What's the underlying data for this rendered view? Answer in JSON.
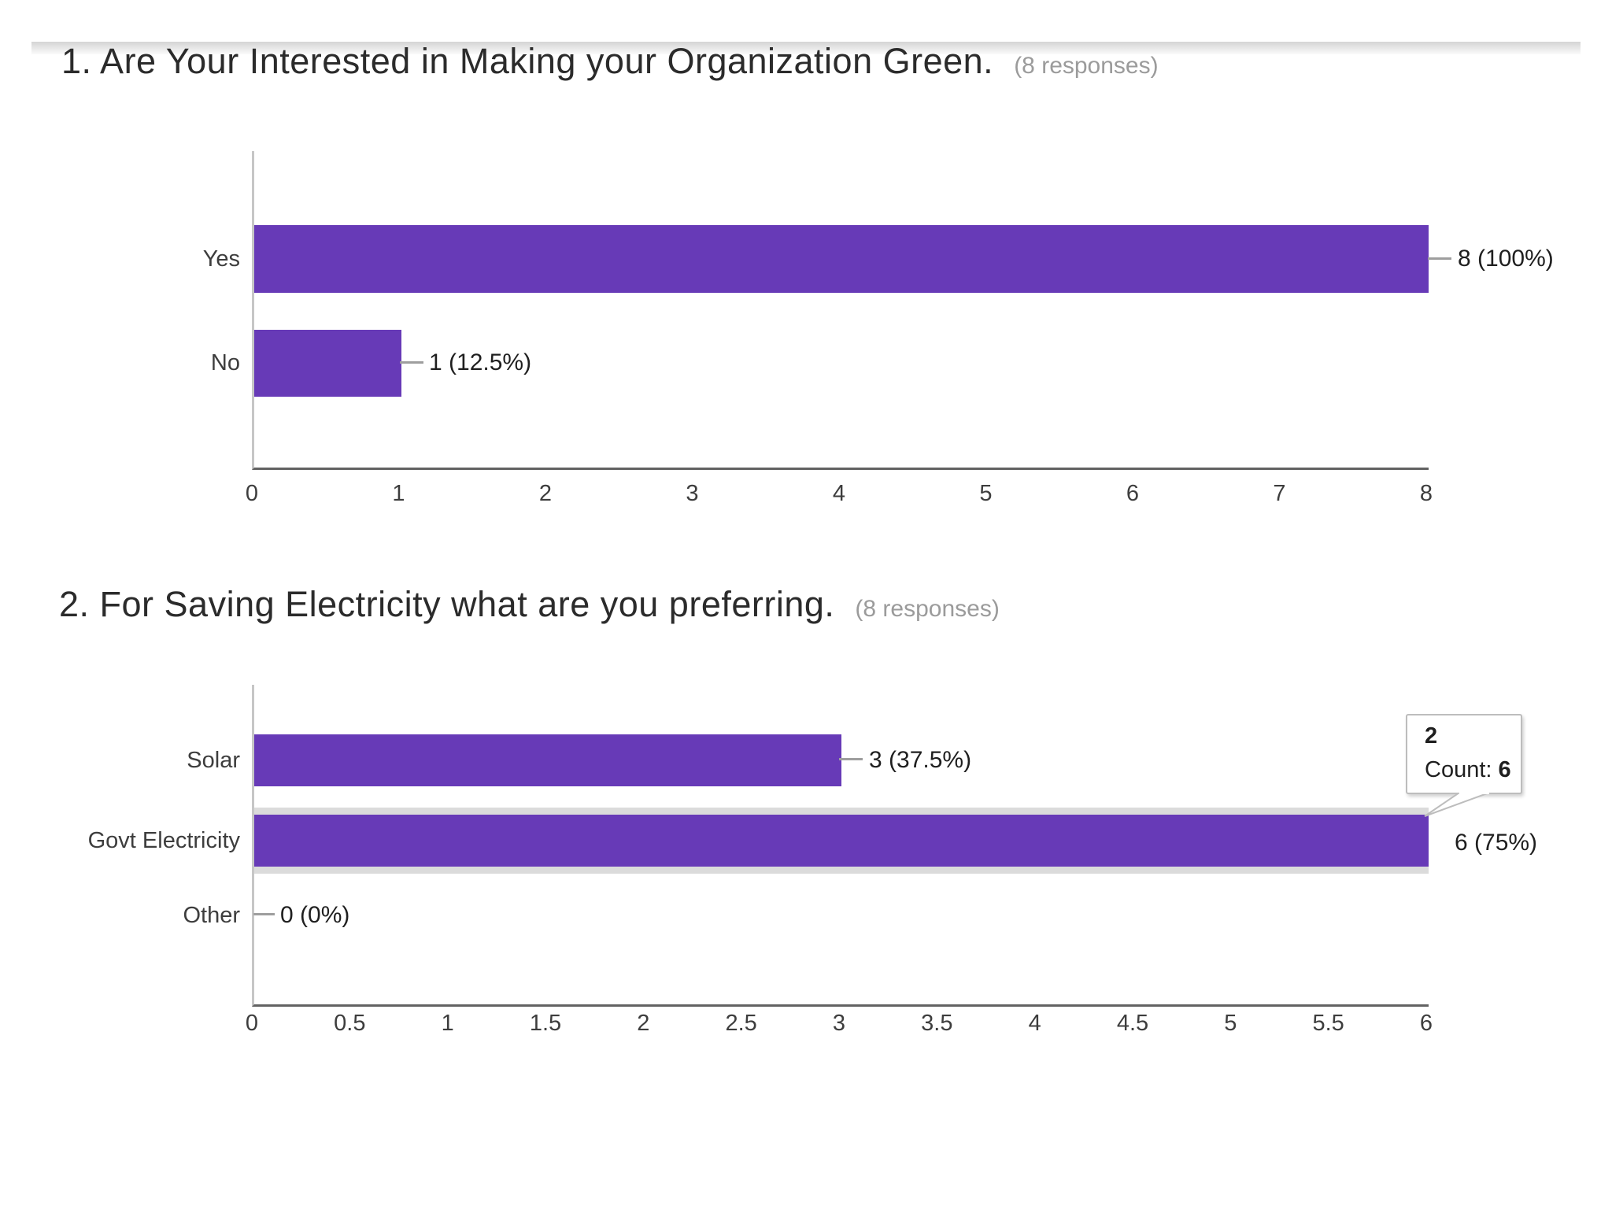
{
  "chart_data": [
    {
      "type": "bar",
      "orientation": "horizontal",
      "title": "1. Are Your Interested in Making your Organization Green.",
      "responses_label": "(8 responses)",
      "categories": [
        "Yes",
        "No"
      ],
      "values": [
        8,
        1
      ],
      "value_labels": [
        "8 (100%)",
        "1 (12.5%)"
      ],
      "xlim": [
        0,
        8
      ],
      "x_ticks": [
        "0",
        "1",
        "2",
        "3",
        "4",
        "5",
        "6",
        "7",
        "8"
      ],
      "bar_color": "#673ab7",
      "legend": "none",
      "grid": "off"
    },
    {
      "type": "bar",
      "orientation": "horizontal",
      "title": "2. For Saving Electricity what are you preferring.",
      "responses_label": "(8 responses)",
      "categories": [
        "Solar",
        "Govt Electricity",
        "Other"
      ],
      "values": [
        3,
        6,
        0
      ],
      "value_labels": [
        "3 (37.5%)",
        "6 (75%)",
        "0 (0%)"
      ],
      "xlim": [
        0,
        6
      ],
      "x_ticks": [
        "0",
        "0.5",
        "1",
        "1.5",
        "2",
        "2.5",
        "3",
        "3.5",
        "4",
        "4.5",
        "5",
        "5.5",
        "6"
      ],
      "bar_color": "#673ab7",
      "legend": "none",
      "grid": "off",
      "highlighted_category": "Govt Electricity",
      "tooltip": {
        "header": "2",
        "count_label": "Count:",
        "count_value": "6"
      }
    }
  ],
  "colors": {
    "bar": "#673ab7",
    "axis_line": "#c6c6c6",
    "baseline": "#626262",
    "note_gray": "#9b9b9b",
    "row_highlight": "#dbdbdb"
  }
}
